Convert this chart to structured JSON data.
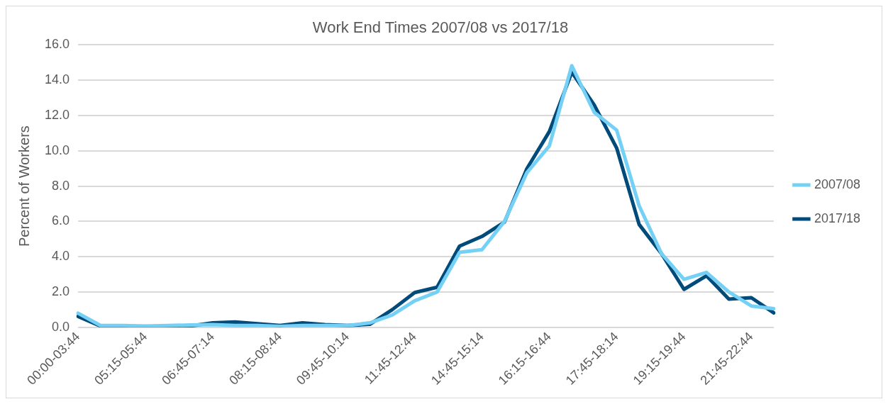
{
  "chart_data": {
    "type": "line",
    "title": "Work End Times 2007/08 vs 2017/18",
    "ylabel": "Percent of Workers",
    "categories": [
      "00:00-03:44",
      null,
      null,
      "05:15-05:44",
      null,
      null,
      "06:45-07:14",
      null,
      null,
      "08:15-08:44",
      null,
      null,
      "09:45-10:14",
      null,
      null,
      "11:45-12:44",
      null,
      null,
      "14:45-15:14",
      null,
      null,
      "16:15-16:44",
      null,
      null,
      "17:45-18:14",
      null,
      null,
      "19:15-19:44",
      null,
      null,
      "21:45-22:44",
      null
    ],
    "series": [
      {
        "name": "2007/08",
        "color": "#75d0f5",
        "values": [
          0.8,
          0.1,
          0.1,
          0.07,
          0.1,
          0.13,
          0.15,
          0.1,
          0.1,
          0.05,
          0.1,
          0.1,
          0.1,
          0.25,
          0.7,
          1.5,
          2.0,
          4.25,
          4.4,
          6.0,
          8.76,
          10.28,
          14.82,
          12.18,
          11.17,
          6.89,
          4.17,
          2.72,
          3.11,
          2.0,
          1.21,
          1.06
        ]
      },
      {
        "name": "2017/18",
        "color": "#004b7a",
        "values": [
          0.62,
          0.07,
          0.05,
          0.03,
          0.05,
          0.07,
          0.25,
          0.3,
          0.2,
          0.1,
          0.25,
          0.15,
          0.1,
          0.17,
          1.0,
          1.97,
          2.27,
          4.6,
          5.15,
          5.96,
          8.99,
          11.09,
          14.46,
          12.6,
          10.16,
          5.83,
          4.17,
          2.15,
          2.92,
          1.6,
          1.68,
          0.82
        ]
      }
    ],
    "ylim": [
      0,
      16
    ],
    "yticks": [
      {
        "value": 0,
        "label": "0.0"
      },
      {
        "value": 2,
        "label": "2.0"
      },
      {
        "value": 4,
        "label": "4.0"
      },
      {
        "value": 6,
        "label": "6.0"
      },
      {
        "value": 8,
        "label": "8.0"
      },
      {
        "value": 10,
        "label": "10.0"
      },
      {
        "value": 12,
        "label": "12.0"
      },
      {
        "value": 14,
        "label": "14.0"
      },
      {
        "value": 16,
        "label": "16.0"
      }
    ],
    "grid": "y",
    "legend": "right",
    "marker": "none",
    "line_style": "solid"
  }
}
